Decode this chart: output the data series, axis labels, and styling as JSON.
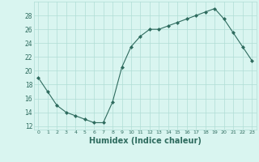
{
  "x": [
    0,
    1,
    2,
    3,
    4,
    5,
    6,
    7,
    8,
    9,
    10,
    11,
    12,
    13,
    14,
    15,
    16,
    17,
    18,
    19,
    20,
    21,
    22,
    23
  ],
  "y": [
    19.0,
    17.0,
    15.0,
    14.0,
    13.5,
    13.0,
    12.5,
    12.5,
    15.5,
    20.5,
    23.5,
    25.0,
    26.0,
    26.0,
    26.5,
    27.0,
    27.5,
    28.0,
    28.5,
    29.0,
    27.5,
    25.5,
    23.5,
    21.5
  ],
  "line_color": "#2e6b5e",
  "marker": "D",
  "marker_size": 2,
  "bg_color": "#d9f5f0",
  "grid_color": "#b0ddd5",
  "tick_color": "#2e6b5e",
  "xlabel": "Humidex (Indice chaleur)",
  "xlabel_fontsize": 7,
  "ylabel_ticks": [
    12,
    14,
    16,
    18,
    20,
    22,
    24,
    26,
    28
  ],
  "ylim": [
    11.5,
    30.0
  ],
  "xlim": [
    -0.5,
    23.5
  ]
}
